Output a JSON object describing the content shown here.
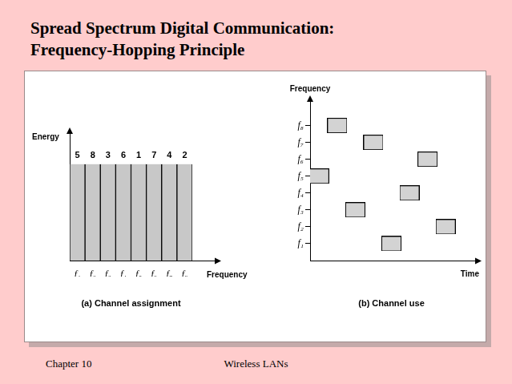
{
  "slide": {
    "title": [
      "Spread Spectrum Digital Communication:",
      "Frequency-Hopping Principle"
    ],
    "footer": [
      "Chapter 10",
      "Wireless LANs"
    ]
  },
  "chart_data": [
    {
      "type": "bar",
      "subtitle": "(a) Channel assignment",
      "x_label": "Frequency",
      "y_label": "Energy",
      "categories": [
        "f₁",
        "f₂",
        "f₃",
        "f₄",
        "f₅",
        "f₆",
        "f₇",
        "f₈"
      ],
      "values": [
        1,
        1,
        1,
        1,
        1,
        1,
        1,
        1
      ],
      "hop_order": [
        5,
        8,
        3,
        6,
        1,
        7,
        4,
        2
      ],
      "color": "#c8c8c8",
      "ylim": [
        0,
        1.33
      ],
      "grid": false,
      "tick_labels": "x"
    },
    {
      "type": "scatter",
      "subtitle": "(b) Channel use",
      "x_label": "Time",
      "y_label": "Frequency",
      "x": [
        1,
        2,
        3,
        4,
        5,
        6,
        7,
        8
      ],
      "values": [
        5,
        8,
        3,
        7,
        1,
        4,
        6,
        2
      ],
      "marker": "square",
      "color": "#d3d3d3",
      "xlim": [
        0.5,
        9.5
      ],
      "ylim": [
        0,
        9.5
      ],
      "yticks": [
        {
          "value": 1,
          "label": "f₁"
        },
        {
          "value": 2,
          "label": "f₂"
        },
        {
          "value": 3,
          "label": "f₃"
        },
        {
          "value": 4,
          "label": "f₄"
        },
        {
          "value": 5,
          "label": "f₅"
        },
        {
          "value": 6,
          "label": "f₆"
        },
        {
          "value": 7,
          "label": "f₇"
        },
        {
          "value": 8,
          "label": "f₈"
        }
      ],
      "grid": false,
      "tick_labels": "y"
    }
  ]
}
